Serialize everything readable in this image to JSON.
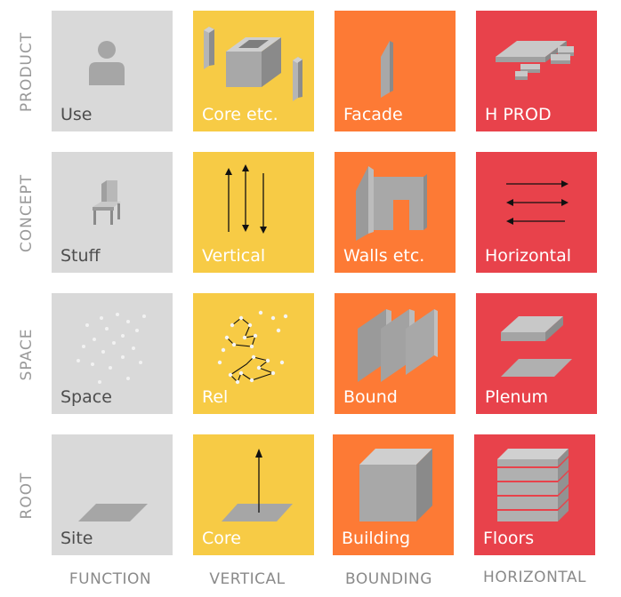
{
  "colors": {
    "function": "#d9d9d9",
    "vertical": "#f7cb45",
    "bounding": "#fd7a35",
    "horizontal": "#e8424b"
  },
  "rows": [
    "PRODUCT",
    "CONCEPT",
    "SPACE",
    "ROOT"
  ],
  "columns": [
    "FUNCTION",
    "VERTICAL",
    "BOUNDING",
    "HORIZONTAL"
  ],
  "tiles": {
    "product": {
      "function": "Use",
      "vertical": "Core etc.",
      "bounding": "Facade",
      "horizontal": "H PROD"
    },
    "concept": {
      "function": "Stuff",
      "vertical": "Vertical",
      "bounding": "Walls etc.",
      "horizontal": "Horizontal"
    },
    "space": {
      "function": "Space",
      "vertical": "Rel",
      "bounding": "Bound",
      "horizontal": "Plenum"
    },
    "root": {
      "function": "Site",
      "vertical": "Core",
      "bounding": "Building",
      "horizontal": "Floors"
    }
  },
  "icons": {
    "product": {
      "function": "person-icon",
      "vertical": "core-box-icon",
      "bounding": "facade-panel-icon",
      "horizontal": "horizontal-product-icon"
    },
    "concept": {
      "function": "chair-icon",
      "vertical": "vertical-arrows-icon",
      "bounding": "walls-icon",
      "horizontal": "horizontal-arrows-icon"
    },
    "space": {
      "function": "point-cloud-icon",
      "vertical": "relation-graph-icon",
      "bounding": "boundary-panels-icon",
      "horizontal": "plenum-slabs-icon"
    },
    "root": {
      "function": "site-plane-icon",
      "vertical": "core-arrow-icon",
      "bounding": "building-cube-icon",
      "horizontal": "floors-stack-icon"
    }
  }
}
